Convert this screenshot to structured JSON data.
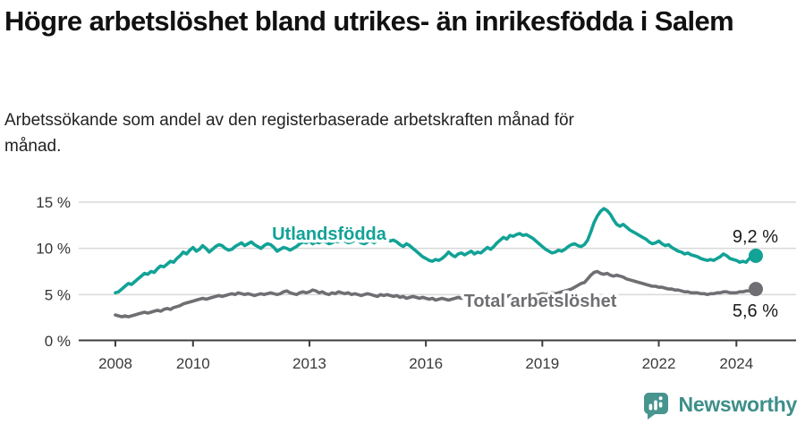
{
  "header": {
    "title": "Högre arbetslöshet bland utrikes- än inrikesfödda i Salem",
    "subtitle": "Arbetssökande som andel av den registerbaserade arbetskraften månad för månad."
  },
  "chart_data": {
    "type": "line",
    "title": "Högre arbetslöshet bland utrikes- än inrikesfödda i Salem",
    "subtitle": "Arbetssökande som andel av den registerbaserade arbetskraften månad för månad.",
    "unit": "%",
    "x_unit": "month",
    "x_start": "2008-01",
    "x_end": "2024-07",
    "grid": true,
    "legend_position": "inline-labels",
    "ylim": [
      0,
      15.5
    ],
    "x_ticks": [
      {
        "year": 2008,
        "label": "2008"
      },
      {
        "year": 2010,
        "label": "2010"
      },
      {
        "year": 2013,
        "label": "2013"
      },
      {
        "year": 2016,
        "label": "2016"
      },
      {
        "year": 2019,
        "label": "2019"
      },
      {
        "year": 2022,
        "label": "2022"
      },
      {
        "year": 2024,
        "label": "2024"
      }
    ],
    "y_ticks": [
      {
        "value": 0,
        "label": "0 %"
      },
      {
        "value": 5,
        "label": "5 %"
      },
      {
        "value": 10,
        "label": "10 %"
      },
      {
        "value": 15,
        "label": "15 %"
      }
    ],
    "series": [
      {
        "name": "Utlandsfödda",
        "color": "#12a296",
        "end_value": 9.2,
        "end_label": "9,2 %",
        "values": [
          5.2,
          5.3,
          5.6,
          5.9,
          6.2,
          6.1,
          6.4,
          6.7,
          7.0,
          7.3,
          7.2,
          7.5,
          7.4,
          7.8,
          8.1,
          8.0,
          8.3,
          8.6,
          8.5,
          8.9,
          9.2,
          9.6,
          9.4,
          9.8,
          10.1,
          9.7,
          9.9,
          10.3,
          10.0,
          9.6,
          9.9,
          10.2,
          10.4,
          10.3,
          10.0,
          9.8,
          9.9,
          10.2,
          10.4,
          10.6,
          10.3,
          10.5,
          10.7,
          10.4,
          10.2,
          10.0,
          10.3,
          10.5,
          10.4,
          10.1,
          9.7,
          9.9,
          10.1,
          10.0,
          9.8,
          10.0,
          10.2,
          10.5,
          10.7,
          10.6,
          10.8,
          10.5,
          10.7,
          10.6,
          10.8,
          10.7,
          10.5,
          10.6,
          10.8,
          10.7,
          10.9,
          10.8,
          10.6,
          10.7,
          10.9,
          10.8,
          10.6,
          10.5,
          10.7,
          10.8,
          10.6,
          10.9,
          11.0,
          10.8,
          11.0,
          10.8,
          10.9,
          10.7,
          10.4,
          10.2,
          10.5,
          10.3,
          10.0,
          9.7,
          9.4,
          9.1,
          8.9,
          8.7,
          8.6,
          8.8,
          8.7,
          8.9,
          9.2,
          9.6,
          9.3,
          9.1,
          9.4,
          9.5,
          9.3,
          9.5,
          9.7,
          9.4,
          9.6,
          9.5,
          9.8,
          10.1,
          9.9,
          10.2,
          10.6,
          10.9,
          11.2,
          11.0,
          11.4,
          11.3,
          11.5,
          11.6,
          11.4,
          11.5,
          11.3,
          11.1,
          10.8,
          10.5,
          10.2,
          9.9,
          9.7,
          9.5,
          9.6,
          9.8,
          9.7,
          9.9,
          10.2,
          10.4,
          10.5,
          10.3,
          10.2,
          10.4,
          10.9,
          11.8,
          12.8,
          13.5,
          14.0,
          14.3,
          14.1,
          13.7,
          13.1,
          12.6,
          12.4,
          12.6,
          12.3,
          12.0,
          11.8,
          11.6,
          11.4,
          11.2,
          11.0,
          10.7,
          10.5,
          10.6,
          10.8,
          10.5,
          10.3,
          10.4,
          10.1,
          9.9,
          9.7,
          9.6,
          9.4,
          9.5,
          9.3,
          9.2,
          9.1,
          8.9,
          8.8,
          8.7,
          8.8,
          8.7,
          8.9,
          9.1,
          9.4,
          9.2,
          8.9,
          8.8,
          8.7,
          8.5,
          8.6,
          8.5,
          8.9,
          9.3,
          9.2
        ]
      },
      {
        "name": "Total arbetslöshet",
        "color": "#6f6f73",
        "end_value": 5.6,
        "end_label": "5,6 %",
        "values": [
          2.8,
          2.7,
          2.6,
          2.7,
          2.6,
          2.7,
          2.8,
          2.9,
          3.0,
          3.1,
          3.0,
          3.1,
          3.2,
          3.3,
          3.2,
          3.4,
          3.5,
          3.4,
          3.6,
          3.7,
          3.8,
          4.0,
          4.1,
          4.2,
          4.3,
          4.4,
          4.5,
          4.6,
          4.5,
          4.6,
          4.7,
          4.8,
          4.9,
          4.8,
          4.9,
          5.0,
          5.1,
          5.0,
          5.2,
          5.1,
          5.0,
          5.1,
          5.0,
          4.9,
          5.0,
          5.1,
          5.0,
          5.1,
          5.2,
          5.1,
          5.0,
          5.1,
          5.3,
          5.4,
          5.2,
          5.1,
          5.0,
          5.2,
          5.3,
          5.2,
          5.3,
          5.5,
          5.4,
          5.2,
          5.3,
          5.1,
          5.0,
          5.2,
          5.1,
          5.3,
          5.2,
          5.1,
          5.2,
          5.0,
          5.1,
          5.0,
          4.9,
          5.0,
          5.1,
          5.0,
          4.9,
          4.8,
          5.0,
          4.9,
          5.0,
          4.9,
          4.8,
          4.9,
          4.7,
          4.8,
          4.6,
          4.7,
          4.8,
          4.7,
          4.6,
          4.7,
          4.6,
          4.5,
          4.6,
          4.4,
          4.5,
          4.6,
          4.5,
          4.4,
          4.5,
          4.6,
          4.7,
          4.6,
          4.7,
          4.6,
          4.5,
          4.6,
          4.7,
          4.8,
          4.7,
          4.8,
          4.7,
          4.8,
          4.9,
          4.8,
          4.7,
          4.8,
          4.9,
          4.8,
          4.7,
          4.8,
          4.7,
          4.8,
          4.9,
          4.8,
          4.9,
          5.0,
          5.1,
          5.0,
          5.1,
          5.2,
          5.1,
          5.2,
          5.3,
          5.4,
          5.5,
          5.6,
          5.8,
          6.0,
          6.2,
          6.3,
          6.7,
          7.1,
          7.4,
          7.5,
          7.3,
          7.2,
          7.3,
          7.1,
          7.0,
          7.1,
          7.0,
          6.9,
          6.7,
          6.6,
          6.5,
          6.4,
          6.3,
          6.2,
          6.1,
          6.0,
          5.9,
          5.9,
          5.8,
          5.8,
          5.7,
          5.6,
          5.6,
          5.5,
          5.5,
          5.4,
          5.3,
          5.3,
          5.2,
          5.2,
          5.2,
          5.1,
          5.1,
          5.0,
          5.1,
          5.1,
          5.2,
          5.2,
          5.3,
          5.3,
          5.2,
          5.2,
          5.2,
          5.3,
          5.3,
          5.4,
          5.4,
          5.5,
          5.6
        ]
      }
    ]
  },
  "footer": {
    "brand": "Newsworthy",
    "logo_icon": "bar-chart-speech-bubble-icon"
  },
  "colors": {
    "accent_teal": "#12a296",
    "line_gray": "#6f6f73",
    "gridline": "#d9d9d9",
    "axis": "#3d3d3d",
    "text_dark": "#1a1a1a",
    "brand_teal": "#48948f"
  }
}
